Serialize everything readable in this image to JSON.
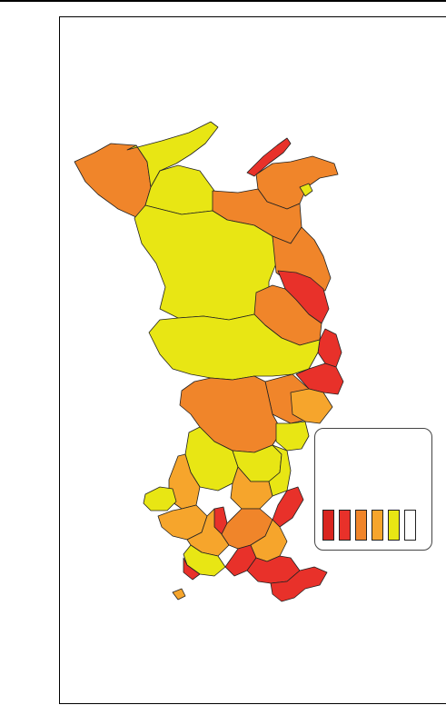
{
  "map": {
    "colors": {
      "dark_red": "#d9251f",
      "red": "#e8312a",
      "dark_orange": "#f0852a",
      "orange": "#f6a52c",
      "yellow": "#e8e614",
      "white": "#ffffff",
      "background": "#ffffff",
      "border": "#222222"
    }
  },
  "legend": {
    "title": "",
    "items": [
      {
        "color": "#d9251f",
        "label": ""
      },
      {
        "color": "#e8312a",
        "label": ""
      },
      {
        "color": "#f0852a",
        "label": ""
      },
      {
        "color": "#f6a52c",
        "label": ""
      },
      {
        "color": "#e8e614",
        "label": ""
      },
      {
        "color": "#ffffff",
        "label": ""
      }
    ]
  }
}
